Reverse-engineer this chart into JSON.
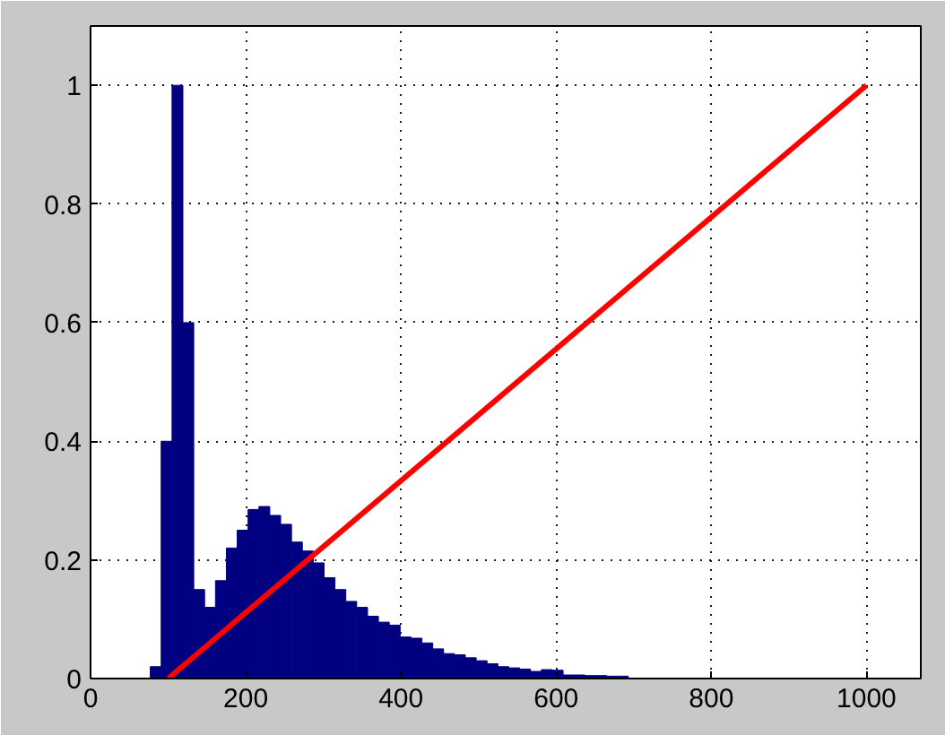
{
  "chart_data": {
    "type": "histogram",
    "xlim": [
      0,
      1070
    ],
    "ylim": [
      0,
      1.1
    ],
    "xticks": [
      0,
      200,
      400,
      600,
      800,
      1000
    ],
    "yticks": [
      0,
      0.2,
      0.4,
      0.6,
      0.8,
      1
    ],
    "grid": true,
    "series": [
      {
        "color": "#000080",
        "bins": [
          77,
          91,
          105,
          119,
          133,
          147,
          161,
          175,
          189,
          203,
          217,
          231,
          245,
          259,
          273,
          287,
          301,
          315,
          329,
          343,
          357,
          371,
          385,
          399,
          413,
          427,
          441,
          455,
          469,
          483,
          497,
          511,
          525,
          539,
          553,
          567,
          581,
          595,
          609,
          623,
          637,
          651,
          665,
          679,
          693
        ],
        "values": [
          0.02,
          0.4,
          1.0,
          0.6,
          0.15,
          0.12,
          0.165,
          0.22,
          0.25,
          0.285,
          0.29,
          0.275,
          0.26,
          0.23,
          0.215,
          0.195,
          0.17,
          0.15,
          0.13,
          0.12,
          0.105,
          0.095,
          0.09,
          0.07,
          0.068,
          0.06,
          0.05,
          0.042,
          0.04,
          0.035,
          0.03,
          0.025,
          0.02,
          0.018,
          0.016,
          0.012,
          0.015,
          0.014,
          0.006,
          0.006,
          0.005,
          0.005,
          0.004,
          0.004
        ]
      },
      {
        "type": "line",
        "color": "#ff0000",
        "x": [
          100,
          1000
        ],
        "values": [
          0,
          1
        ]
      }
    ]
  }
}
